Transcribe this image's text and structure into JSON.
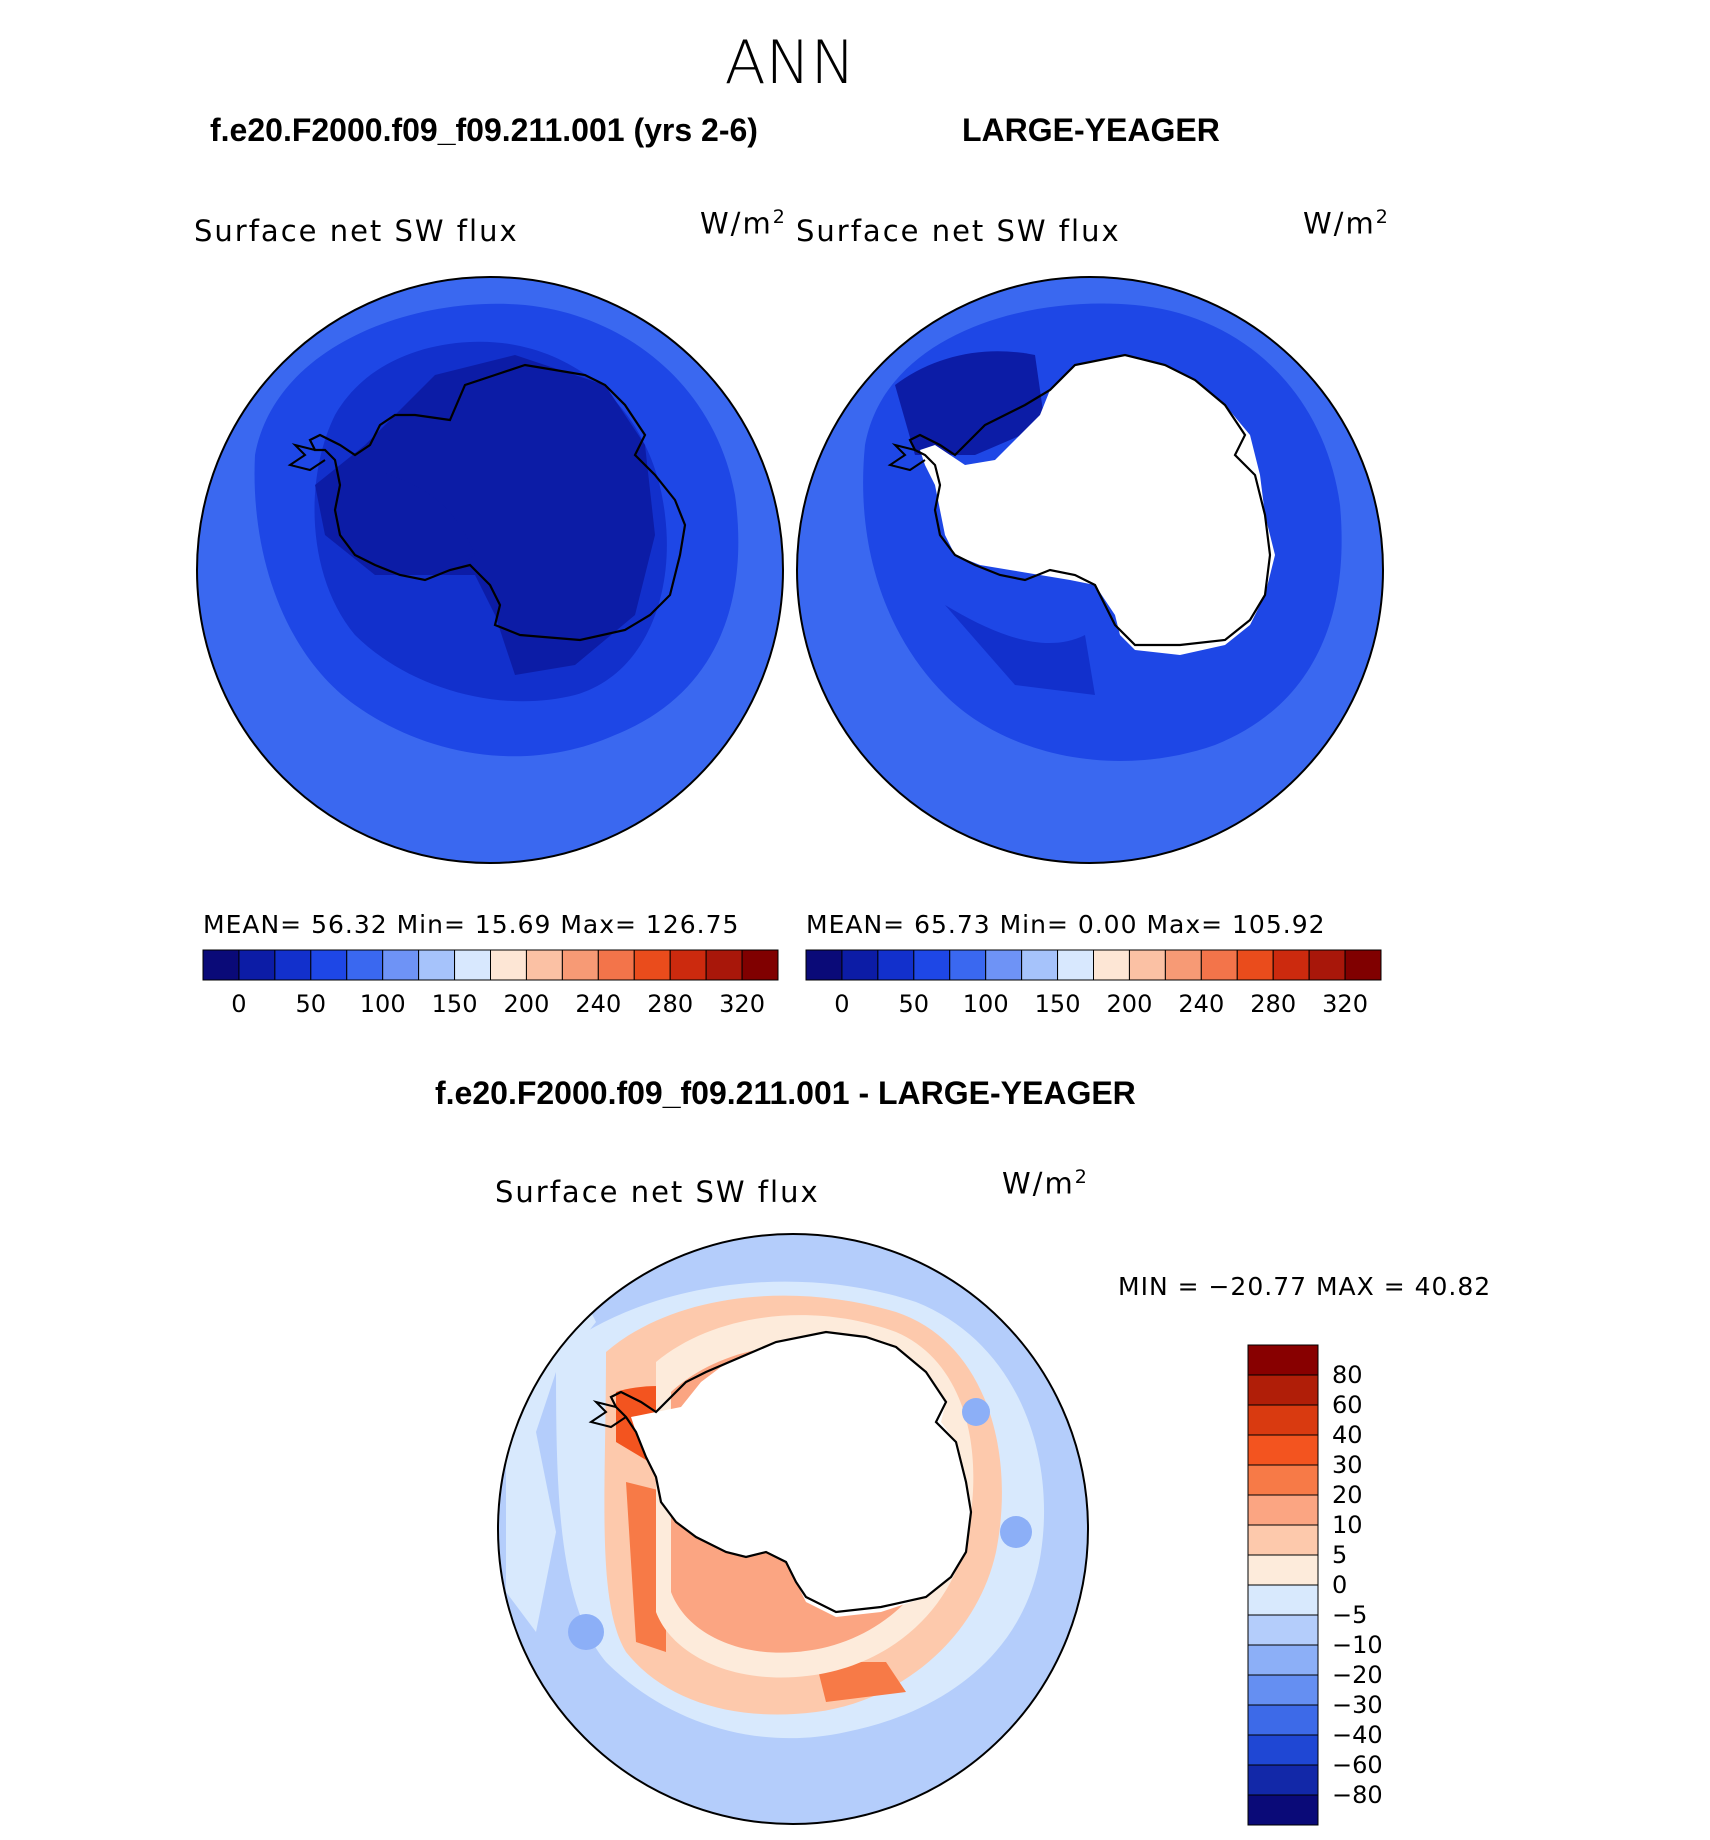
{
  "figure": {
    "season": "ANN",
    "case_title": "f.e20.F2000.f09_f09.211.001 (yrs 2-6)",
    "obs_title": "LARGE-YEAGER",
    "diff_title": "f.e20.F2000.f09_f09.211.001 - LARGE-YEAGER"
  },
  "panels": [
    {
      "label": "Surface net SW flux",
      "units": "W/m",
      "units_sup": "2",
      "stats": "MEAN=   56.32   Min=   15.69   Max=  126.75"
    },
    {
      "label": "Surface net SW flux",
      "units": "W/m",
      "units_sup": "2",
      "stats": "MEAN=   65.73   Min=    0.00   Max=  105.92"
    },
    {
      "label": "Surface net SW flux",
      "units": "W/m",
      "units_sup": "2",
      "stats": "MIN = −20.77  MAX =   40.82"
    }
  ],
  "chart_data": [
    {
      "type": "heatmap",
      "title": "Surface net SW flux",
      "projection": "south-polar-stereographic",
      "stats": {
        "mean": 56.32,
        "min": 15.69,
        "max": 126.75
      },
      "colorbar_levels": [
        0,
        25,
        50,
        75,
        100,
        125,
        150,
        175,
        200,
        220,
        240,
        260,
        280,
        300,
        320
      ],
      "colorbar_labels": [
        "0",
        "50",
        "100",
        "150",
        "200",
        "240",
        "280",
        "320"
      ],
      "colors": [
        "#0a0a78",
        "#0c1ca6",
        "#1230cc",
        "#1e47e6",
        "#3a68f0",
        "#6e93f6",
        "#a6c3fb",
        "#d8e8fe",
        "#fde6d5",
        "#fbc1a4",
        "#f79a75",
        "#f3744a",
        "#ea4c1c",
        "#cc2a0e",
        "#a8170a",
        "#800000"
      ],
      "legend_placement": "bottom"
    },
    {
      "type": "heatmap",
      "title": "Surface net SW flux",
      "projection": "south-polar-stereographic",
      "stats": {
        "mean": 65.73,
        "min": 0.0,
        "max": 105.92
      },
      "colorbar_levels": [
        0,
        25,
        50,
        75,
        100,
        125,
        150,
        175,
        200,
        220,
        240,
        260,
        280,
        300,
        320
      ],
      "colorbar_labels": [
        "0",
        "50",
        "100",
        "150",
        "200",
        "240",
        "280",
        "320"
      ],
      "colors": [
        "#0a0a78",
        "#0c1ca6",
        "#1230cc",
        "#1e47e6",
        "#3a68f0",
        "#6e93f6",
        "#a6c3fb",
        "#d8e8fe",
        "#fde6d5",
        "#fbc1a4",
        "#f79a75",
        "#f3744a",
        "#ea4c1c",
        "#cc2a0e",
        "#a8170a",
        "#800000"
      ],
      "legend_placement": "bottom"
    },
    {
      "type": "heatmap",
      "title": "Surface net SW flux",
      "projection": "south-polar-stereographic",
      "stats": {
        "min": -20.77,
        "max": 40.82
      },
      "colorbar_levels": [
        80,
        60,
        40,
        30,
        20,
        10,
        5,
        0,
        -5,
        -10,
        -20,
        -30,
        -40,
        -60,
        -80
      ],
      "colorbar_labels": [
        "80",
        "60",
        "40",
        "30",
        "20",
        "10",
        "5",
        "0",
        "−5",
        "−10",
        "−20",
        "−30",
        "−40",
        "−60",
        "−80"
      ],
      "colors": [
        "#880000",
        "#b01e08",
        "#d93a10",
        "#f3541f",
        "#f77a47",
        "#fba582",
        "#fdc9ac",
        "#fdebdb",
        "#d8e9fd",
        "#b4cdfb",
        "#8caff7",
        "#658ff2",
        "#3d6ae8",
        "#1f47d4",
        "#1228a8",
        "#0a0a78"
      ],
      "legend_placement": "right"
    }
  ]
}
